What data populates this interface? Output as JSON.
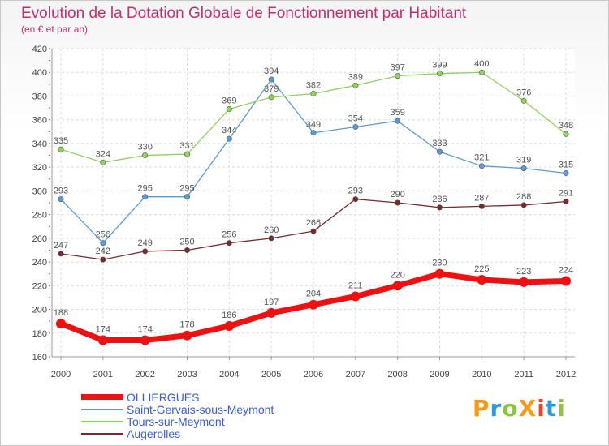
{
  "title": "Evolution de la Dotation Globale de Fonctionnement par Habitant",
  "subtitle": "(en € et par an)",
  "brand": {
    "text": "ProXiti",
    "colors": [
      "#f59a1b",
      "#2e9ad6",
      "#8cc63f",
      "#f59a1b",
      "#e8462a",
      "#2e9ad6",
      "#8cc63f"
    ]
  },
  "chart_data": {
    "type": "line",
    "title": "Evolution de la Dotation Globale de Fonctionnement par Habitant",
    "subtitle": "(en € et par an)",
    "xlabel": "",
    "ylabel": "",
    "x": [
      "2000",
      "2001",
      "2002",
      "2003",
      "2004",
      "2005",
      "2006",
      "2007",
      "2008",
      "2009",
      "2010",
      "2011",
      "2012"
    ],
    "ylim": [
      160,
      420
    ],
    "yticks": [
      160,
      180,
      200,
      220,
      240,
      260,
      280,
      300,
      320,
      340,
      360,
      380,
      400,
      420
    ],
    "grid": true,
    "legend_position": "bottom-left",
    "series": [
      {
        "name": "Saint-Gervais-sous-Meymont",
        "color": "#5b9bd5",
        "width": 1.3,
        "values": [
          293,
          256,
          295,
          295,
          344,
          394,
          349,
          354,
          359,
          333,
          321,
          319,
          315
        ]
      },
      {
        "name": "Tours-sur-Meymont",
        "color": "#8fd35a",
        "width": 1.3,
        "values": [
          335,
          324,
          330,
          331,
          369,
          379,
          382,
          389,
          397,
          399,
          400,
          376,
          348
        ]
      },
      {
        "name": "Augerolles",
        "color": "#7a2a2a",
        "width": 1.3,
        "values": [
          247,
          242,
          249,
          250,
          256,
          260,
          266,
          293,
          290,
          286,
          287,
          288,
          291
        ]
      },
      {
        "name": "OLLIERGUES",
        "color": "#ee1111",
        "width": 7,
        "values": [
          188,
          174,
          174,
          178,
          186,
          197,
          204,
          211,
          220,
          230,
          225,
          223,
          224
        ]
      }
    ],
    "legend": [
      "OLLIERGUES",
      "Saint-Gervais-sous-Meymont",
      "Tours-sur-Meymont",
      "Augerolles"
    ]
  }
}
